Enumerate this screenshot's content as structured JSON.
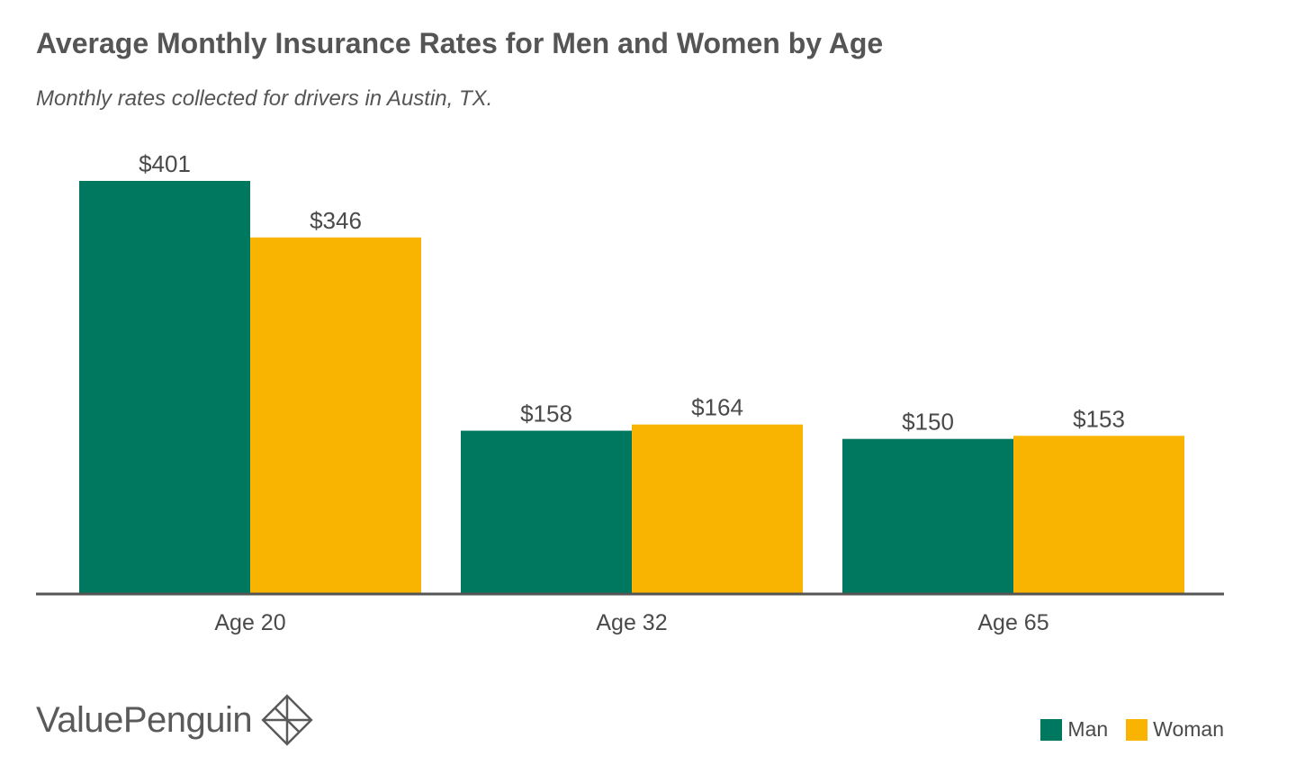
{
  "brand": {
    "name": "ValuePenguin"
  },
  "colors": {
    "man": "#00785f",
    "woman": "#f8b400",
    "axis": "#555555",
    "text": "#4a4a4a"
  },
  "chart_data": {
    "type": "bar",
    "title": "Average Monthly Insurance Rates for Men and Women by Age",
    "subtitle": "Monthly rates collected for drivers in Austin, TX.",
    "categories": [
      "Age 20",
      "Age 32",
      "Age 65"
    ],
    "series": [
      {
        "name": "Man",
        "values": [
          401,
          158,
          150
        ],
        "labels": [
          "$401",
          "$158",
          "$150"
        ]
      },
      {
        "name": "Woman",
        "values": [
          346,
          164,
          153
        ],
        "labels": [
          "$346",
          "$164",
          "$153"
        ]
      }
    ],
    "ylim": [
      0,
      401
    ],
    "grid": false,
    "legend_position": "bottom-right"
  }
}
